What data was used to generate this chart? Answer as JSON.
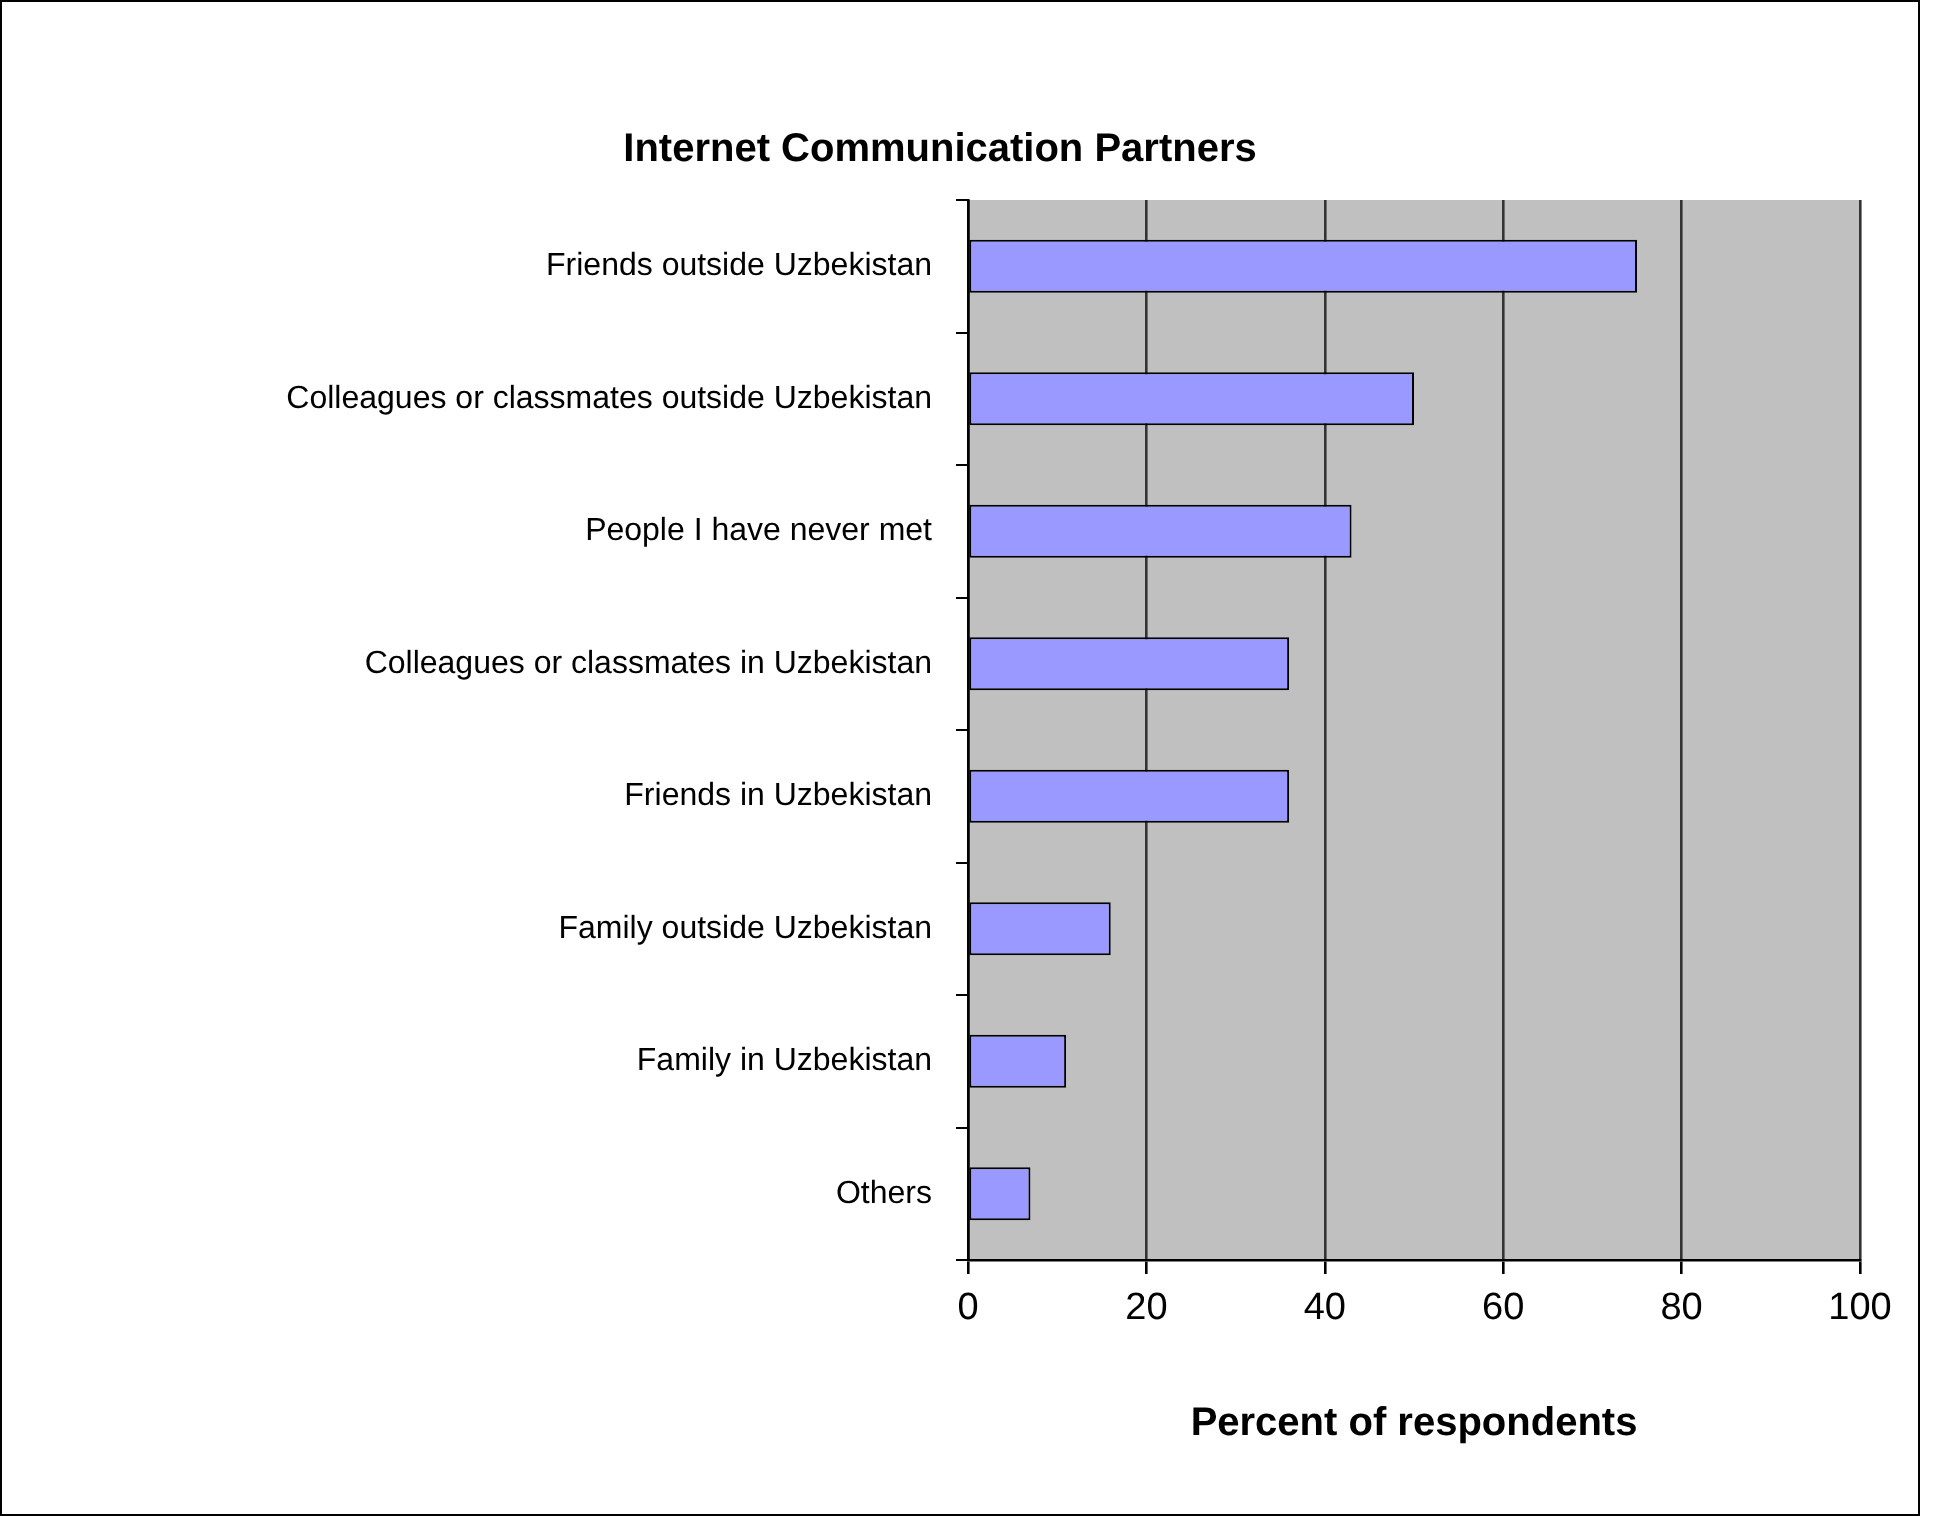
{
  "chart_data": {
    "type": "bar",
    "orientation": "horizontal",
    "title": "Internet Communication Partners",
    "xlabel": "Percent of respondents",
    "categories": [
      "Friends outside Uzbekistan",
      "Colleagues or classmates outside Uzbekistan",
      "People I have never met",
      "Colleagues or classmates in Uzbekistan",
      "Friends in Uzbekistan",
      "Family outside Uzbekistan",
      "Family in Uzbekistan",
      "Others"
    ],
    "values": [
      75,
      50,
      43,
      36,
      36,
      16,
      11,
      7
    ],
    "color": "#9999ff",
    "xlim": [
      0,
      100
    ],
    "xticks": [
      0,
      20,
      40,
      60,
      80,
      100
    ],
    "grid": "x",
    "legend": false
  }
}
